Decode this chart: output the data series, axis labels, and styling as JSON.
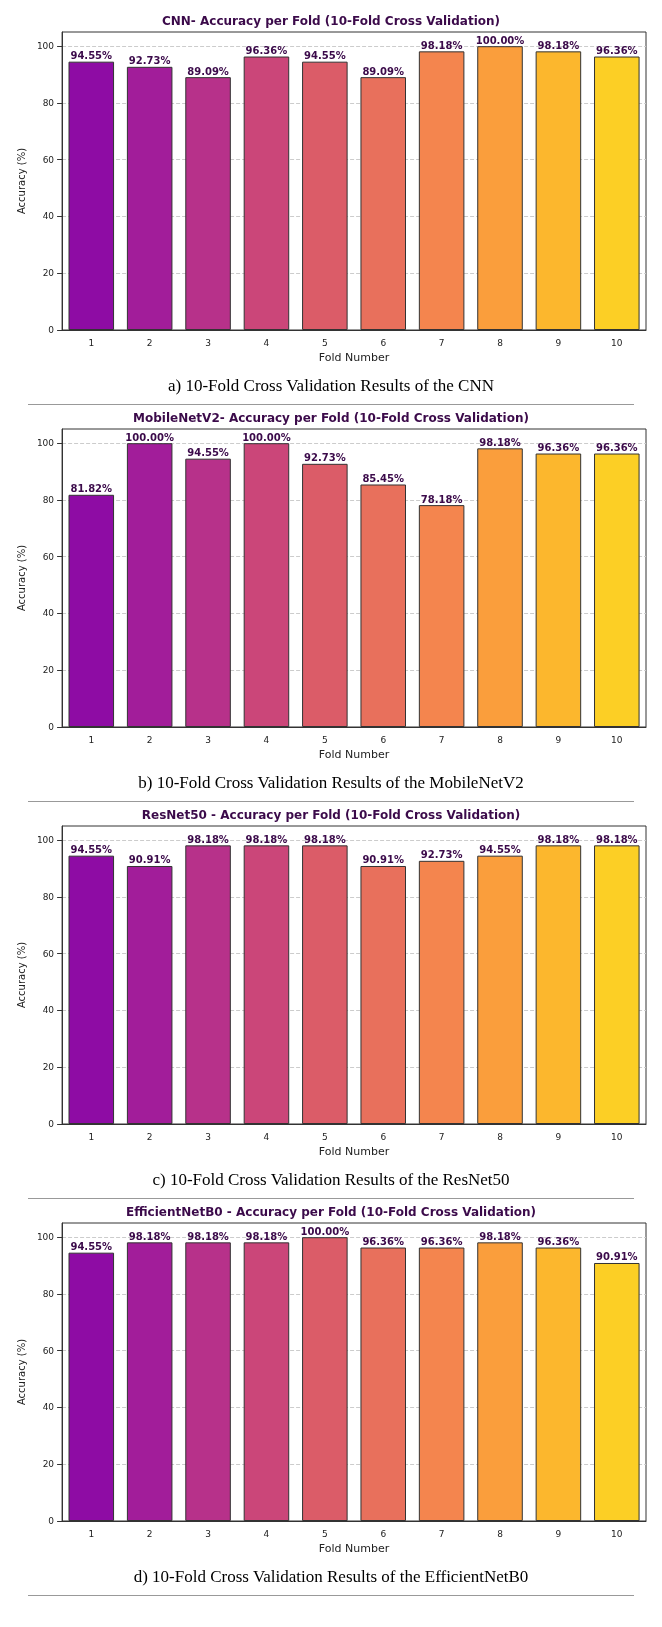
{
  "chart_data": [
    {
      "type": "bar",
      "title": "CNN- Accuracy per Fold (10-Fold Cross Validation)",
      "xlabel": "Fold Number",
      "ylabel": "Accuracy (%)",
      "categories": [
        "1",
        "2",
        "3",
        "4",
        "5",
        "6",
        "7",
        "8",
        "9",
        "10"
      ],
      "values": [
        94.55,
        92.73,
        89.09,
        96.36,
        94.55,
        89.09,
        98.18,
        100.0,
        98.18,
        96.36
      ],
      "value_labels": [
        "94.55%",
        "92.73%",
        "89.09%",
        "96.36%",
        "94.55%",
        "89.09%",
        "98.18%",
        "100.00%",
        "98.18%",
        "96.36%"
      ],
      "colors": [
        "#8e0ca4",
        "#a21d9a",
        "#b7318a",
        "#cb4679",
        "#db5c68",
        "#e8705c",
        "#f4854e",
        "#fa9e3c",
        "#fcb72d",
        "#fccf25"
      ],
      "ylim": [
        0,
        105
      ],
      "yticks": [
        0,
        20,
        40,
        60,
        80,
        100
      ],
      "grid": "y",
      "annotations": [
        "a) 10-Fold Cross Validation Results of the CNN"
      ]
    },
    {
      "type": "bar",
      "title": "MobileNetV2- Accuracy per Fold (10-Fold Cross Validation)",
      "xlabel": "Fold Number",
      "ylabel": "Accuracy (%)",
      "categories": [
        "1",
        "2",
        "3",
        "4",
        "5",
        "6",
        "7",
        "8",
        "9",
        "10"
      ],
      "values": [
        81.82,
        100.0,
        94.55,
        100.0,
        92.73,
        85.45,
        78.18,
        98.18,
        96.36,
        96.36
      ],
      "value_labels": [
        "81.82%",
        "100.00%",
        "94.55%",
        "100.00%",
        "92.73%",
        "85.45%",
        "78.18%",
        "98.18%",
        "96.36%",
        "96.36%"
      ],
      "colors": [
        "#8e0ca4",
        "#a21d9a",
        "#b7318a",
        "#cb4679",
        "#db5c68",
        "#e8705c",
        "#f4854e",
        "#fa9e3c",
        "#fcb72d",
        "#fccf25"
      ],
      "ylim": [
        0,
        105
      ],
      "yticks": [
        0,
        20,
        40,
        60,
        80,
        100
      ],
      "grid": "y",
      "annotations": [
        "b) 10-Fold Cross Validation Results of the MobileNetV2"
      ]
    },
    {
      "type": "bar",
      "title": "ResNet50 - Accuracy per Fold (10-Fold Cross Validation)",
      "xlabel": "Fold Number",
      "ylabel": "Accuracy (%)",
      "categories": [
        "1",
        "2",
        "3",
        "4",
        "5",
        "6",
        "7",
        "8",
        "9",
        "10"
      ],
      "values": [
        94.55,
        90.91,
        98.18,
        98.18,
        98.18,
        90.91,
        92.73,
        94.55,
        98.18,
        98.18
      ],
      "value_labels": [
        "94.55%",
        "90.91%",
        "98.18%",
        "98.18%",
        "98.18%",
        "90.91%",
        "92.73%",
        "94.55%",
        "98.18%",
        "98.18%"
      ],
      "colors": [
        "#8e0ca4",
        "#a21d9a",
        "#b7318a",
        "#cb4679",
        "#db5c68",
        "#e8705c",
        "#f4854e",
        "#fa9e3c",
        "#fcb72d",
        "#fccf25"
      ],
      "ylim": [
        0,
        105
      ],
      "yticks": [
        0,
        20,
        40,
        60,
        80,
        100
      ],
      "grid": "y",
      "annotations": [
        "c) 10-Fold Cross Validation Results of the ResNet50"
      ]
    },
    {
      "type": "bar",
      "title": "EfficientNetB0 - Accuracy per Fold (10-Fold Cross Validation)",
      "xlabel": "Fold Number",
      "ylabel": "Accuracy (%)",
      "categories": [
        "1",
        "2",
        "3",
        "4",
        "5",
        "6",
        "7",
        "8",
        "9",
        "10"
      ],
      "values": [
        94.55,
        98.18,
        98.18,
        98.18,
        100.0,
        96.36,
        96.36,
        98.18,
        96.36,
        90.91
      ],
      "value_labels": [
        "94.55%",
        "98.18%",
        "98.18%",
        "98.18%",
        "100.00%",
        "96.36%",
        "96.36%",
        "98.18%",
        "96.36%",
        "90.91%"
      ],
      "colors": [
        "#8e0ca4",
        "#a21d9a",
        "#b7318a",
        "#cb4679",
        "#db5c68",
        "#e8705c",
        "#f4854e",
        "#fa9e3c",
        "#fcb72d",
        "#fccf25"
      ],
      "ylim": [
        0,
        105
      ],
      "yticks": [
        0,
        20,
        40,
        60,
        80,
        100
      ],
      "grid": "y",
      "annotations": [
        "d) 10-Fold Cross Validation Results of the EfficientNetB0"
      ]
    }
  ]
}
